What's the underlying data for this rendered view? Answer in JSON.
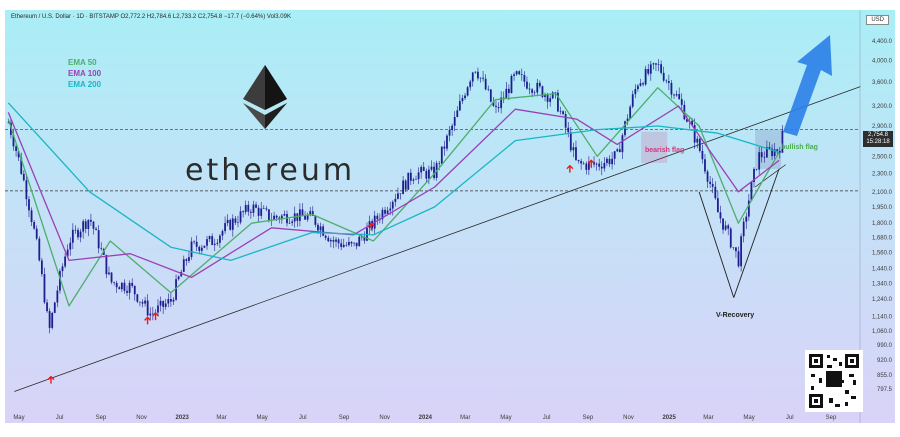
{
  "header": {
    "title": "Ethereum / U.S. Dollar · 1D · BITSTAMP",
    "ohlc": "O2,772.2 H2,784.6 L2,733.2 C2,754.8 −17.7 (−0.64%) Vol3.09K"
  },
  "currency_label": "USD",
  "wordmark": "ethereum",
  "legend": [
    {
      "label": "EMA 50",
      "color": "#4caf6a"
    },
    {
      "label": "EMA 100",
      "color": "#9b3fb5"
    },
    {
      "label": "EMA 200",
      "color": "#19b6c4"
    }
  ],
  "annotations": {
    "bearish": "bearish flag",
    "bullish": "bullish flag",
    "v_recovery": "V-Recovery"
  },
  "price_tag": {
    "price": "2,754.8",
    "countdown": "15:28:18"
  },
  "colors": {
    "candle": "#1e1e8f",
    "ema50": "#4caf6a",
    "ema100": "#9b3fb5",
    "ema200": "#19b6c4",
    "arrow": "#2b7fe8",
    "marker": "#e81b1b",
    "bearish": "#d4377a",
    "bullish": "#4caf50"
  },
  "chart_data": {
    "type": "candlestick-line",
    "y_scale": "log",
    "ylim": [
      720,
      4600
    ],
    "x_labels": [
      "May",
      "Jul",
      "Sep",
      "Nov",
      "2023",
      "Mar",
      "May",
      "Jul",
      "Sep",
      "Nov",
      "2024",
      "Mar",
      "May",
      "Jul",
      "Sep",
      "Nov",
      "2025",
      "Mar",
      "May",
      "Jul",
      "Sep"
    ],
    "y_ticks": [
      "4,400.0",
      "4,000.0",
      "3,600.0",
      "3,200.0",
      "2,900.0",
      "2,500.0",
      "2,300.0",
      "2,100.0",
      "1,950.0",
      "1,800.0",
      "1,680.0",
      "1,560.0",
      "1,440.0",
      "1,340.0",
      "1,240.0",
      "1,140.0",
      "1,060.0",
      "990.0",
      "920.0",
      "855.0",
      "797.5"
    ],
    "support_levels": [
      2850,
      2110
    ],
    "trendline": [
      {
        "date": "2022-05",
        "price": 820
      },
      {
        "date": "2025-09",
        "price": 3350
      }
    ],
    "price_path": [
      {
        "date": "2022-04",
        "price": 2950
      },
      {
        "date": "2022-05",
        "price": 2000
      },
      {
        "date": "2022-06",
        "price": 1050
      },
      {
        "date": "2022-07",
        "price": 1650
      },
      {
        "date": "2022-08",
        "price": 1850
      },
      {
        "date": "2022-09",
        "price": 1350
      },
      {
        "date": "2022-10",
        "price": 1320
      },
      {
        "date": "2022-11",
        "price": 1150
      },
      {
        "date": "2022-12",
        "price": 1230
      },
      {
        "date": "2023-01",
        "price": 1600
      },
      {
        "date": "2023-02",
        "price": 1650
      },
      {
        "date": "2023-03",
        "price": 1800
      },
      {
        "date": "2023-04",
        "price": 1950
      },
      {
        "date": "2023-05",
        "price": 1850
      },
      {
        "date": "2023-06",
        "price": 1870
      },
      {
        "date": "2023-07",
        "price": 1850
      },
      {
        "date": "2023-08",
        "price": 1650
      },
      {
        "date": "2023-09",
        "price": 1600
      },
      {
        "date": "2023-10",
        "price": 1800
      },
      {
        "date": "2023-11",
        "price": 2050
      },
      {
        "date": "2023-12",
        "price": 2300
      },
      {
        "date": "2024-01",
        "price": 2300
      },
      {
        "date": "2024-02",
        "price": 3000
      },
      {
        "date": "2024-03",
        "price": 3900
      },
      {
        "date": "2024-04",
        "price": 3100
      },
      {
        "date": "2024-05",
        "price": 3700
      },
      {
        "date": "2024-06",
        "price": 3500
      },
      {
        "date": "2024-07",
        "price": 3300
      },
      {
        "date": "2024-08",
        "price": 2400
      },
      {
        "date": "2024-09",
        "price": 2400
      },
      {
        "date": "2024-10",
        "price": 2500
      },
      {
        "date": "2024-11",
        "price": 3600
      },
      {
        "date": "2024-12",
        "price": 3900
      },
      {
        "date": "2025-01",
        "price": 3300
      },
      {
        "date": "2025-02",
        "price": 2600
      },
      {
        "date": "2025-03",
        "price": 1900
      },
      {
        "date": "2025-04",
        "price": 1500
      },
      {
        "date": "2025-05",
        "price": 2500
      },
      {
        "date": "2025-06",
        "price": 2600
      },
      {
        "date": "2025-06-20",
        "price": 2754.8
      }
    ],
    "ema_series": [
      {
        "name": "EMA 50",
        "path": [
          {
            "date": "2022-04",
            "price": 3000
          },
          {
            "date": "2022-07",
            "price": 1200
          },
          {
            "date": "2022-09",
            "price": 1650
          },
          {
            "date": "2022-12",
            "price": 1280
          },
          {
            "date": "2023-04",
            "price": 1800
          },
          {
            "date": "2023-07",
            "price": 1880
          },
          {
            "date": "2023-10",
            "price": 1650
          },
          {
            "date": "2024-01",
            "price": 2300
          },
          {
            "date": "2024-04",
            "price": 3300
          },
          {
            "date": "2024-07",
            "price": 3400
          },
          {
            "date": "2024-09",
            "price": 2500
          },
          {
            "date": "2024-12",
            "price": 3500
          },
          {
            "date": "2025-02",
            "price": 2900
          },
          {
            "date": "2025-04",
            "price": 1800
          },
          {
            "date": "2025-06",
            "price": 2550
          }
        ]
      },
      {
        "name": "EMA 100",
        "path": [
          {
            "date": "2022-04",
            "price": 3100
          },
          {
            "date": "2022-07",
            "price": 1500
          },
          {
            "date": "2022-10",
            "price": 1550
          },
          {
            "date": "2023-01",
            "price": 1380
          },
          {
            "date": "2023-05",
            "price": 1760
          },
          {
            "date": "2023-09",
            "price": 1700
          },
          {
            "date": "2024-01",
            "price": 2150
          },
          {
            "date": "2024-05",
            "price": 3150
          },
          {
            "date": "2024-08",
            "price": 3000
          },
          {
            "date": "2024-10",
            "price": 2650
          },
          {
            "date": "2025-01",
            "price": 3200
          },
          {
            "date": "2025-04",
            "price": 2100
          },
          {
            "date": "2025-06",
            "price": 2450
          }
        ]
      },
      {
        "name": "EMA 200",
        "path": [
          {
            "date": "2022-04",
            "price": 3250
          },
          {
            "date": "2022-08",
            "price": 2100
          },
          {
            "date": "2022-12",
            "price": 1600
          },
          {
            "date": "2023-03",
            "price": 1500
          },
          {
            "date": "2023-07",
            "price": 1720
          },
          {
            "date": "2023-10",
            "price": 1700
          },
          {
            "date": "2024-01",
            "price": 1950
          },
          {
            "date": "2024-05",
            "price": 2700
          },
          {
            "date": "2024-09",
            "price": 2850
          },
          {
            "date": "2024-12",
            "price": 2900
          },
          {
            "date": "2025-03",
            "price": 2800
          },
          {
            "date": "2025-06",
            "price": 2550
          }
        ]
      }
    ],
    "support_markers": [
      {
        "date": "2022-06-18"
      },
      {
        "date": "2022-11-10"
      },
      {
        "date": "2022-11-22"
      },
      {
        "date": "2023-10-12"
      },
      {
        "date": "2024-08-05"
      },
      {
        "date": "2024-09-06"
      }
    ]
  }
}
